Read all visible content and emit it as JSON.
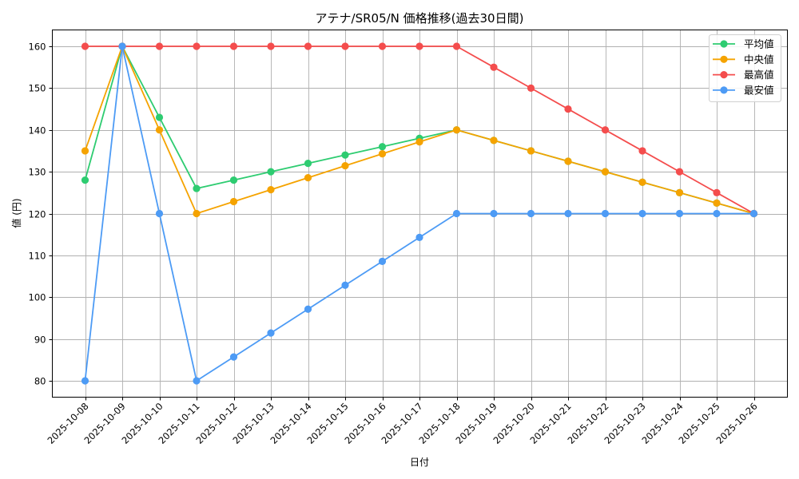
{
  "chart_data": {
    "type": "line",
    "title": "アテナ/SR05/N 価格推移(過去30日間)",
    "xlabel": "日付",
    "ylabel": "値 (円)",
    "ylim": [
      76,
      164
    ],
    "yticks": [
      80,
      90,
      100,
      110,
      120,
      130,
      140,
      150,
      160
    ],
    "grid": true,
    "legend_position": "upper right",
    "x": [
      "2025-10-08",
      "2025-10-09",
      "2025-10-10",
      "2025-10-11",
      "2025-10-12",
      "2025-10-13",
      "2025-10-14",
      "2025-10-15",
      "2025-10-16",
      "2025-10-17",
      "2025-10-18",
      "2025-10-19",
      "2025-10-20",
      "2025-10-21",
      "2025-10-22",
      "2025-10-23",
      "2025-10-24",
      "2025-10-25",
      "2025-10-26"
    ],
    "series": [
      {
        "name": "平均値",
        "color": "#2ecc71",
        "values": [
          128,
          160,
          143,
          126,
          128,
          130,
          132,
          134,
          136,
          138,
          140,
          137.5,
          135,
          132.5,
          130,
          127.5,
          125,
          122.5,
          120
        ]
      },
      {
        "name": "中央値",
        "color": "#f5a300",
        "values": [
          135,
          160,
          140,
          120,
          122.86,
          125.71,
          128.57,
          131.43,
          134.29,
          137.14,
          140,
          137.5,
          135,
          132.5,
          130,
          127.5,
          125,
          122.5,
          120
        ]
      },
      {
        "name": "最高値",
        "color": "#f44d4d",
        "values": [
          160,
          160,
          160,
          160,
          160,
          160,
          160,
          160,
          160,
          160,
          160,
          155,
          150,
          145,
          140,
          135,
          130,
          125,
          120
        ]
      },
      {
        "name": "最安値",
        "color": "#4d9bf5",
        "values": [
          80,
          160,
          120,
          80,
          85.71,
          91.43,
          97.14,
          102.86,
          108.57,
          114.29,
          120,
          120,
          120,
          120,
          120,
          120,
          120,
          120,
          120
        ]
      }
    ]
  }
}
